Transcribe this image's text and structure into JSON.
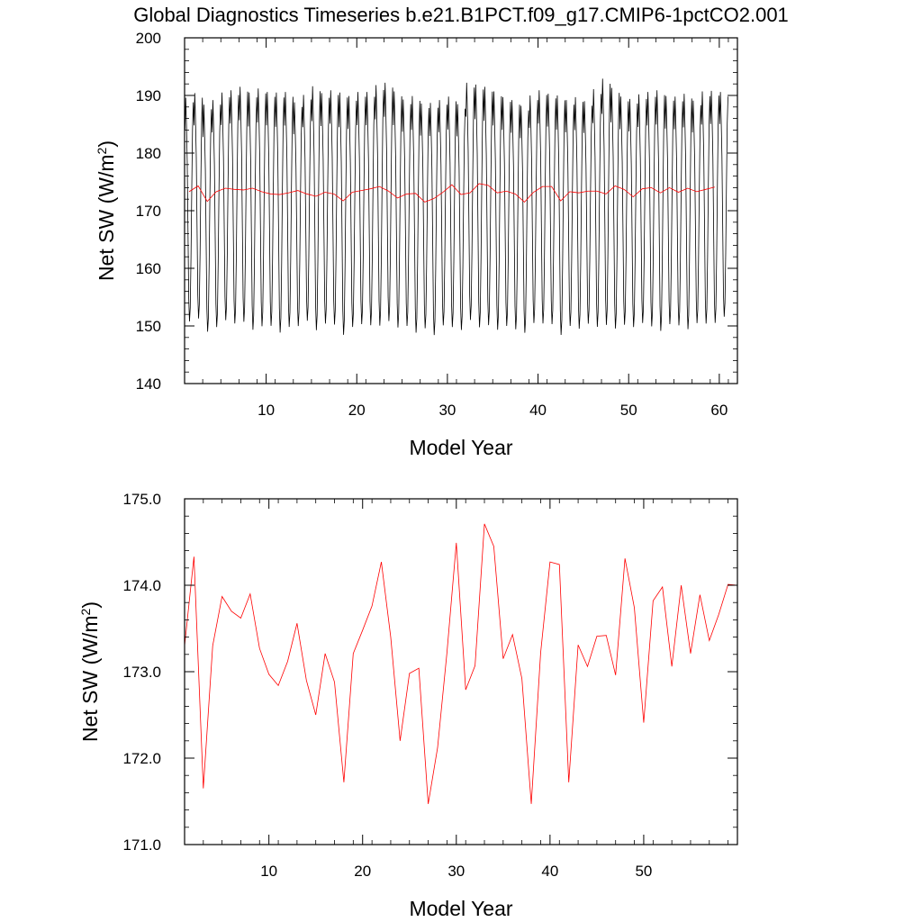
{
  "title": "Global Diagnostics Timeseries b.e21.B1PCT.f09_g17.CMIP6-1pctCO2.001",
  "chart_data": [
    {
      "type": "line",
      "xlabel": "Model Year",
      "ylabel": "Net SW (W/m",
      "ylabel_sup": "2",
      "ylabel_close": ")",
      "xlim": [
        1,
        62
      ],
      "ylim": [
        140,
        200
      ],
      "xticks": [
        "10",
        "20",
        "30",
        "40",
        "50",
        "60"
      ],
      "xtick_values": [
        10,
        20,
        30,
        40,
        50,
        60
      ],
      "yticks": [
        "140",
        "150",
        "160",
        "170",
        "180",
        "190",
        "200"
      ],
      "ytick_values": [
        140,
        150,
        160,
        170,
        180,
        190,
        200
      ],
      "series": [
        {
          "color": "#000000",
          "monthly": {
            "start_year": 1,
            "max": [
              189.6,
              190.4,
              188.4,
              189.2,
              190.5,
              190.9,
              191.5,
              190.5,
              191.2,
              190.6,
              190.5,
              190.6,
              188.8,
              190.1,
              191.6,
              190.4,
              190.9,
              190.5,
              189.9,
              190.6,
              190.6,
              191.8,
              192.2,
              190.7,
              189.3,
              189.9,
              188.6,
              188.7,
              189.2,
              189.8,
              188.5,
              192.2,
              191.9,
              191.5,
              190.7,
              189.7,
              189.2,
              188.2,
              190.0,
              190.9,
              190.3,
              190.0,
              189.2,
              189.7,
              189.0,
              191.1,
              192.9,
              191.3,
              189.8,
              189.4,
              190.2,
              190.6,
              190.9,
              189.9,
              189.8,
              190.3,
              189.1,
              190.7,
              190.8,
              190.6
            ],
            "min": [
              150.0,
              150.5,
              148.2,
              149.0,
              150.2,
              149.6,
              149.9,
              148.5,
              149.1,
              149.2,
              148.0,
              149.0,
              149.2,
              150.1,
              148.4,
              149.6,
              149.4,
              147.6,
              149.0,
              149.5,
              149.3,
              149.2,
              150.0,
              148.9,
              149.2,
              148.0,
              148.8,
              147.6,
              149.3,
              149.0,
              148.5,
              150.2,
              148.9,
              149.3,
              148.5,
              149.2,
              148.6,
              148.0,
              149.7,
              149.6,
              149.5,
              147.6,
              149.2,
              148.7,
              149.6,
              149.0,
              149.3,
              148.7,
              149.4,
              149.0,
              149.7,
              149.1,
              148.3,
              149.5,
              149.3,
              148.6,
              149.7,
              149.6,
              149.7,
              150.8
            ]
          }
        },
        {
          "color": "#ff0000",
          "x": [
            1.5,
            2.5,
            3.5,
            4.5,
            5.5,
            6.5,
            7.5,
            8.5,
            9.5,
            10.5,
            11.5,
            12.5,
            13.5,
            14.5,
            15.5,
            16.5,
            17.5,
            18.5,
            19.5,
            20.5,
            21.5,
            22.5,
            23.5,
            24.5,
            25.5,
            26.5,
            27.5,
            28.5,
            29.5,
            30.5,
            31.5,
            32.5,
            33.5,
            34.5,
            35.5,
            36.5,
            37.5,
            38.5,
            39.5,
            40.5,
            41.5,
            42.5,
            43.5,
            44.5,
            45.5,
            46.5,
            47.5,
            48.5,
            49.5,
            50.5,
            51.5,
            52.5,
            53.5,
            54.5,
            55.5,
            56.5,
            57.5,
            58.5,
            59.5
          ],
          "y": [
            173.3,
            174.3,
            171.6,
            173.3,
            173.9,
            173.7,
            173.6,
            173.9,
            173.3,
            172.9,
            172.8,
            173.1,
            173.5,
            172.9,
            172.5,
            173.2,
            172.9,
            171.7,
            173.2,
            173.5,
            173.8,
            174.2,
            173.4,
            172.2,
            172.9,
            173.0,
            171.5,
            172.1,
            173.2,
            174.5,
            172.8,
            173.1,
            174.7,
            174.4,
            173.1,
            173.4,
            172.9,
            171.5,
            173.2,
            174.2,
            174.2,
            171.7,
            173.3,
            173.1,
            173.4,
            173.4,
            172.9,
            174.3,
            173.7,
            172.4,
            173.8,
            174.0,
            173.1,
            174.0,
            173.2,
            173.9,
            173.3,
            173.7,
            174.1
          ]
        }
      ]
    },
    {
      "type": "line",
      "xlabel": "Model Year",
      "ylabel": "Net SW (W/m",
      "ylabel_sup": "2",
      "ylabel_close": ")",
      "xlim": [
        1,
        60
      ],
      "ylim": [
        171.0,
        175.0
      ],
      "xticks": [
        "10",
        "20",
        "30",
        "40",
        "50"
      ],
      "xtick_values": [
        10,
        20,
        30,
        40,
        50
      ],
      "yticks": [
        "171.0",
        "172.0",
        "173.0",
        "174.0",
        "175.0"
      ],
      "ytick_values": [
        171,
        172,
        173,
        174,
        175
      ],
      "series": [
        {
          "color": "#ff0000",
          "x": [
            1.0,
            2.0,
            3.0,
            4.0,
            5.0,
            6.0,
            7.0,
            8.0,
            9.0,
            10.0,
            11.0,
            12.0,
            13.0,
            14.0,
            15.0,
            16.0,
            17.0,
            18.0,
            19.0,
            20.0,
            21.0,
            22.0,
            23.0,
            24.0,
            25.0,
            26.0,
            27.0,
            28.0,
            29.0,
            30.0,
            31.0,
            32.0,
            33.0,
            34.0,
            35.0,
            36.0,
            37.0,
            38.0,
            39.0,
            40.0,
            41.0,
            42.0,
            43.0,
            44.0,
            45.0,
            46.0,
            47.0,
            48.0,
            49.0,
            50.0,
            51.0,
            52.0,
            53.0,
            54.0,
            55.0,
            56.0,
            57.0,
            58.0,
            59.0,
            60.0
          ],
          "y": [
            173.3,
            174.33,
            171.65,
            173.3,
            173.87,
            173.7,
            173.62,
            173.9,
            173.27,
            172.97,
            172.84,
            173.12,
            173.56,
            172.9,
            172.5,
            173.21,
            172.88,
            171.72,
            173.21,
            173.48,
            173.76,
            174.27,
            173.4,
            172.2,
            172.98,
            173.04,
            171.47,
            172.12,
            173.22,
            174.49,
            172.79,
            173.07,
            174.71,
            174.45,
            173.15,
            173.43,
            172.92,
            171.47,
            173.22,
            174.27,
            174.24,
            171.72,
            173.31,
            173.06,
            173.41,
            173.42,
            172.96,
            174.31,
            173.74,
            172.41,
            173.82,
            173.98,
            173.06,
            174.0,
            173.21,
            173.89,
            173.36,
            173.66,
            174.01,
            174.0
          ]
        }
      ]
    }
  ]
}
